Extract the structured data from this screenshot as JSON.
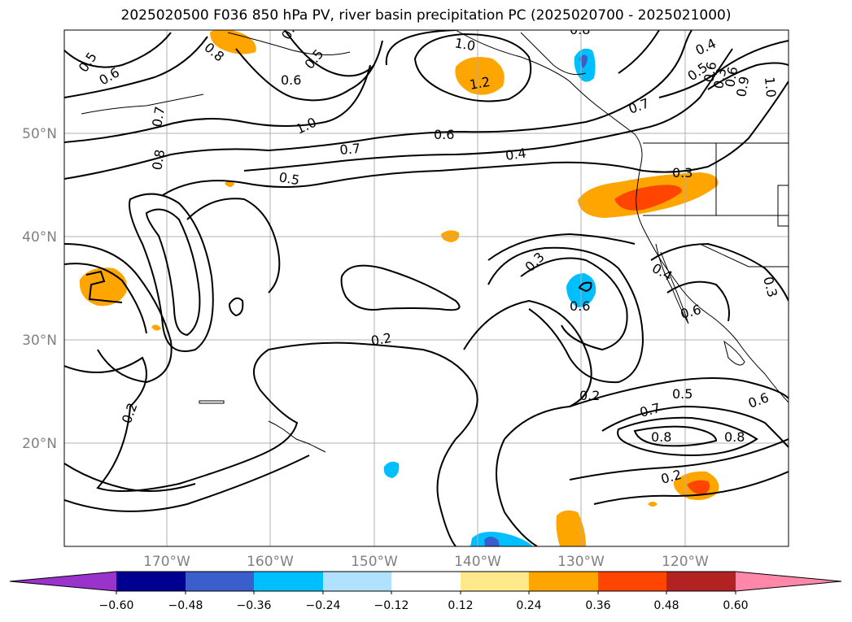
{
  "title": "2025020500 F036 850 hPa PV, river basin precipitation PC (2025020700 - 2025021000)",
  "lat_labels": [
    "50°N",
    "40°N",
    "30°N",
    "20°N"
  ],
  "lon_labels": [
    "170°W",
    "160°W",
    "150°W",
    "140°W",
    "130°W",
    "120°W"
  ],
  "colorbar": {
    "ticks": [
      "−0.60",
      "−0.48",
      "−0.36",
      "−0.24",
      "−0.12",
      "0.12",
      "0.24",
      "0.36",
      "0.48",
      "0.60"
    ],
    "colors": [
      "#9933cc",
      "#000090",
      "#3a5fcd",
      "#00bfff",
      "#b0e2ff",
      "#ffffff",
      "#ffe98a",
      "#ffa500",
      "#ff4500",
      "#b22222",
      "#ff88aa"
    ]
  },
  "contour_labels": [
    "0.5",
    "0.8",
    "0.5",
    "0.6",
    "0.5",
    "1.0",
    "1.2",
    "0.8",
    "0.4",
    "0.5",
    "1.0",
    "0.6",
    "0.7",
    "0.6",
    "1.0",
    "0.7",
    "0.8",
    "0.6",
    "0.7",
    "0.4",
    "0.5",
    "0.3",
    "0.3",
    "0.4",
    "0.3",
    "0.6",
    "0.6",
    "0.2",
    "0.2",
    "0.2",
    "0.5",
    "0.7",
    "0.6",
    "0.8",
    "0.8",
    "0.2",
    "0.3",
    "0.6",
    "0.9"
  ]
}
